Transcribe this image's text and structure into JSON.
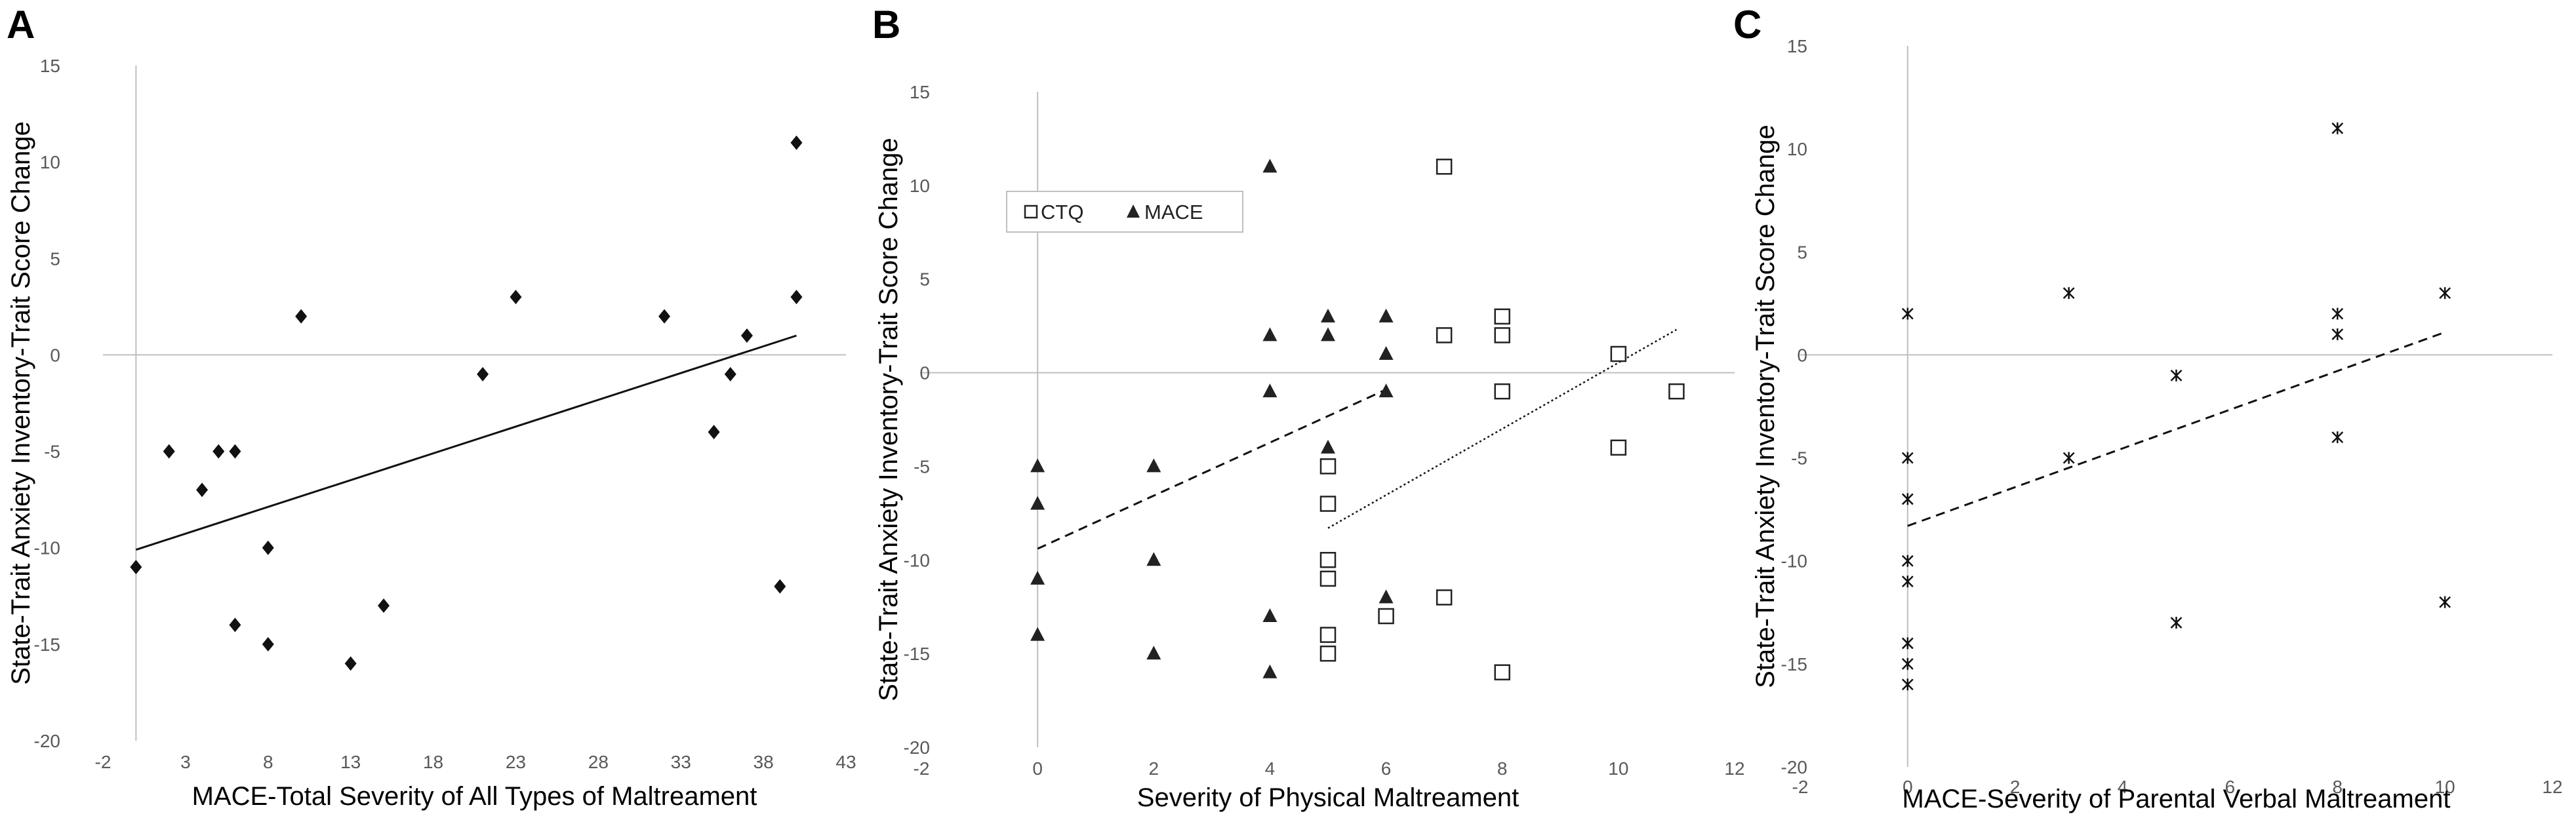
{
  "figure": {
    "panels": [
      "A",
      "B",
      "C"
    ]
  },
  "chart_data": [
    {
      "panel": "A",
      "type": "scatter",
      "title": "",
      "xlabel": "MACE-Total Severity of All Types of Maltreament",
      "ylabel": "State-Trait Anxiety Inventory-Trait Score Change",
      "xlim": [
        -2,
        43
      ],
      "ylim": [
        -20,
        15
      ],
      "xticks": [
        -2,
        3,
        8,
        13,
        18,
        23,
        28,
        33,
        38,
        43
      ],
      "yticks": [
        -20,
        -15,
        -10,
        -5,
        0,
        5,
        10,
        15
      ],
      "series": [
        {
          "name": "MACE",
          "marker": "diamond",
          "points": [
            [
              0,
              -11
            ],
            [
              2,
              -5
            ],
            [
              4,
              -7
            ],
            [
              5,
              -5
            ],
            [
              6,
              -5
            ],
            [
              6,
              -14
            ],
            [
              8,
              -10
            ],
            [
              8,
              -15
            ],
            [
              10,
              2
            ],
            [
              13,
              -16
            ],
            [
              15,
              -13
            ],
            [
              21,
              -1
            ],
            [
              23,
              3
            ],
            [
              32,
              2
            ],
            [
              35,
              -4
            ],
            [
              36,
              -1
            ],
            [
              37,
              1
            ],
            [
              39,
              -12
            ],
            [
              40,
              11
            ],
            [
              40,
              3
            ]
          ],
          "trendline": {
            "style": "solid",
            "from": [
              0,
              -10.1
            ],
            "to": [
              40,
              1.0
            ]
          }
        }
      ]
    },
    {
      "panel": "B",
      "type": "scatter",
      "title": "",
      "xlabel": "Severity of Physical Maltreament",
      "ylabel": "State-Trait Anxiety Inventory-Trait Score Change",
      "xlim": [
        -2,
        12
      ],
      "ylim": [
        -20,
        15
      ],
      "xticks": [
        -2,
        0,
        2,
        4,
        6,
        8,
        10,
        12
      ],
      "yticks": [
        -20,
        -15,
        -10,
        -5,
        0,
        5,
        10,
        15
      ],
      "legend": [
        "CTQ",
        "MACE"
      ],
      "series": [
        {
          "name": "CTQ",
          "marker": "square",
          "points": [
            [
              5,
              -5
            ],
            [
              5,
              -7
            ],
            [
              5,
              -10
            ],
            [
              5,
              -11
            ],
            [
              5,
              -14
            ],
            [
              5,
              -15
            ],
            [
              6,
              -13
            ],
            [
              7,
              11
            ],
            [
              7,
              2
            ],
            [
              7,
              -12
            ],
            [
              8,
              3
            ],
            [
              8,
              2
            ],
            [
              8,
              -1
            ],
            [
              8,
              -16
            ],
            [
              10,
              1
            ],
            [
              10,
              -4
            ],
            [
              11,
              -1
            ]
          ],
          "trendline": {
            "style": "dotted",
            "from": [
              5,
              -8.3
            ],
            "to": [
              11,
              2.3
            ]
          }
        },
        {
          "name": "MACE",
          "marker": "triangle",
          "points": [
            [
              0,
              -5
            ],
            [
              0,
              -7
            ],
            [
              0,
              -11
            ],
            [
              0,
              -14
            ],
            [
              2,
              -5
            ],
            [
              2,
              -10
            ],
            [
              2,
              -15
            ],
            [
              4,
              11
            ],
            [
              4,
              2
            ],
            [
              4,
              -1
            ],
            [
              4,
              -13
            ],
            [
              4,
              -16
            ],
            [
              5,
              3
            ],
            [
              5,
              2
            ],
            [
              5,
              -4
            ],
            [
              6,
              3
            ],
            [
              6,
              1
            ],
            [
              6,
              -1
            ],
            [
              6,
              -12
            ]
          ],
          "trendline": {
            "style": "dashed",
            "from": [
              0,
              -9.4
            ],
            "to": [
              6,
              -0.9
            ]
          }
        }
      ]
    },
    {
      "panel": "C",
      "type": "scatter",
      "title": "",
      "xlabel": "MACE-Severity of Parental Verbal Maltreament",
      "ylabel": "State-Trait Anxiety Inventory-Trait Score Change",
      "xlim": [
        -2,
        12
      ],
      "ylim": [
        -20,
        15
      ],
      "xticks": [
        -2,
        0,
        2,
        4,
        6,
        8,
        10,
        12
      ],
      "yticks": [
        -20,
        -15,
        -10,
        -5,
        0,
        5,
        10,
        15
      ],
      "series": [
        {
          "name": "MACE",
          "marker": "asterisk",
          "points": [
            [
              0,
              2
            ],
            [
              0,
              -5
            ],
            [
              0,
              -7
            ],
            [
              0,
              -10
            ],
            [
              0,
              -11
            ],
            [
              0,
              -14
            ],
            [
              0,
              -15
            ],
            [
              0,
              -16
            ],
            [
              3,
              3
            ],
            [
              3,
              -5
            ],
            [
              5,
              -1
            ],
            [
              5,
              -13
            ],
            [
              8,
              11
            ],
            [
              8,
              2
            ],
            [
              8,
              1
            ],
            [
              8,
              -4
            ],
            [
              10,
              3
            ],
            [
              10,
              -12
            ]
          ],
          "trendline": {
            "style": "dashed",
            "from": [
              0,
              -8.3
            ],
            "to": [
              10,
              1.1
            ]
          }
        }
      ]
    }
  ]
}
